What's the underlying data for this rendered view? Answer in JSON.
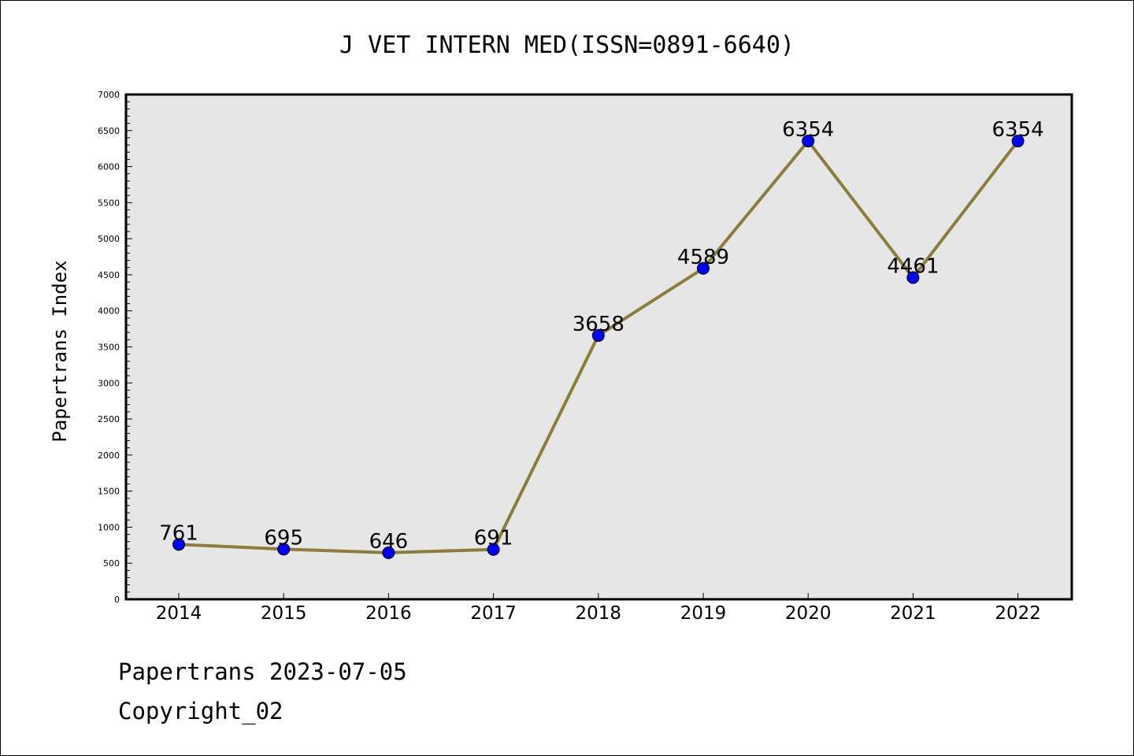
{
  "chart_data": {
    "type": "line",
    "title": "J VET INTERN MED(ISSN=0891-6640)",
    "xlabel": "",
    "ylabel": "Papertrans Index",
    "categories": [
      "2014",
      "2015",
      "2016",
      "2017",
      "2018",
      "2019",
      "2020",
      "2021",
      "2022"
    ],
    "series": [
      {
        "values": [
          761,
          695,
          646,
          691,
          3658,
          4589,
          6354,
          4461,
          6354
        ]
      }
    ],
    "data_labels": [
      "761",
      "695",
      "646",
      "691",
      "3658",
      "4589",
      "6354",
      "4461",
      "6354"
    ],
    "ylim": [
      0,
      7000
    ],
    "yticks": [
      0,
      500,
      1000,
      1500,
      2000,
      2500,
      3000,
      3500,
      4000,
      4500,
      5000,
      5500,
      6000,
      6500,
      7000
    ],
    "grid": false,
    "legend": "none",
    "colors": {
      "line": "#8c7d3a",
      "marker": "#0000ff",
      "plot_background": "#e6e6e6"
    }
  },
  "footer": {
    "line1": "Papertrans 2023-07-05",
    "line2": "Copyright_02"
  }
}
